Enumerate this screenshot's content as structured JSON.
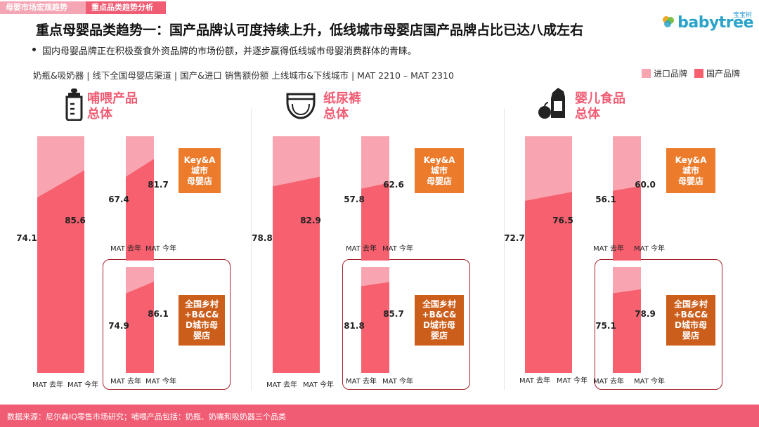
{
  "tabs": [
    "母婴市场宏观趋势",
    "重点品类趋势分析"
  ],
  "logo": {
    "small": "宝宝树",
    "main": "babytree"
  },
  "title": "重点母婴品类趋势一：国产品牌认可度持续上升，低线城市母婴店国产品牌占比已达八成左右",
  "bullet": "国内母婴品牌正在积极蚕食外资品牌的市场份额，并逐步赢得低线城市母婴消费群体的青睐。",
  "subtitle": "奶瓶&吸奶器 | 线下全国母婴店渠道 | 国产&进口 销售额份额 上线城市&下线城市 | MAT 2210 – MAT 2310",
  "legend": {
    "import": "进口品牌",
    "domestic": "国产品牌"
  },
  "colors": {
    "import": "#f8a5b1",
    "domestic": "#f6606f",
    "orange": "#ec7b2c",
    "frame": "#a4222c"
  },
  "categories": [
    {
      "name": "哺喂产品",
      "sub": "总体",
      "icon": "baby-bottle-icon"
    },
    {
      "name": "纸尿裤",
      "sub": "总体",
      "icon": "diaper-icon"
    },
    {
      "name": "婴儿食品",
      "sub": "总体",
      "icon": "baby-food-icon"
    }
  ],
  "segments": {
    "upper": "Key&A\n城市\n母婴店",
    "lower": "全国乡村\n+B&C&\nD城市母\n婴店"
  },
  "periods": [
    "MAT 去年",
    "MAT 今年"
  ],
  "chart_data": [
    {
      "type": "area",
      "category": "哺喂产品",
      "segment": "总体",
      "series": [
        {
          "name": "国产品牌",
          "values": [
            74.1,
            85.6
          ]
        }
      ],
      "categories": [
        "MAT 去年",
        "MAT 今年"
      ],
      "ylim": [
        0,
        100
      ]
    },
    {
      "type": "area",
      "category": "哺喂产品",
      "segment": "Key&A城市母婴店",
      "series": [
        {
          "name": "国产品牌",
          "values": [
            67.4,
            81.7
          ]
        }
      ],
      "categories": [
        "MAT 去年",
        "MAT 今年"
      ],
      "ylim": [
        0,
        100
      ]
    },
    {
      "type": "area",
      "category": "哺喂产品",
      "segment": "全国乡村+B&C&D城市母婴店",
      "series": [
        {
          "name": "国产品牌",
          "values": [
            74.9,
            86.1
          ]
        }
      ],
      "categories": [
        "MAT 去年",
        "MAT 今年"
      ],
      "ylim": [
        0,
        100
      ]
    },
    {
      "type": "area",
      "category": "纸尿裤",
      "segment": "总体",
      "series": [
        {
          "name": "国产品牌",
          "values": [
            78.8,
            82.9
          ]
        }
      ],
      "categories": [
        "MAT 去年",
        "MAT 今年"
      ],
      "ylim": [
        0,
        100
      ]
    },
    {
      "type": "area",
      "category": "纸尿裤",
      "segment": "Key&A城市母婴店",
      "series": [
        {
          "name": "国产品牌",
          "values": [
            57.8,
            62.6
          ]
        }
      ],
      "categories": [
        "MAT 去年",
        "MAT 今年"
      ],
      "ylim": [
        0,
        100
      ]
    },
    {
      "type": "area",
      "category": "纸尿裤",
      "segment": "全国乡村+B&C&D城市母婴店",
      "series": [
        {
          "name": "国产品牌",
          "values": [
            81.8,
            85.7
          ]
        }
      ],
      "categories": [
        "MAT 去年",
        "MAT 今年"
      ],
      "ylim": [
        0,
        100
      ]
    },
    {
      "type": "area",
      "category": "婴儿食品",
      "segment": "总体",
      "series": [
        {
          "name": "国产品牌",
          "values": [
            72.7,
            76.5
          ]
        }
      ],
      "categories": [
        "MAT 去年",
        "MAT 今年"
      ],
      "ylim": [
        0,
        100
      ]
    },
    {
      "type": "area",
      "category": "婴儿食品",
      "segment": "Key&A城市母婴店",
      "series": [
        {
          "name": "国产品牌",
          "values": [
            56.1,
            60.0
          ]
        }
      ],
      "categories": [
        "MAT 去年",
        "MAT 今年"
      ],
      "ylim": [
        0,
        100
      ]
    },
    {
      "type": "area",
      "category": "婴儿食品",
      "segment": "全国乡村+B&C&D城市母婴店",
      "series": [
        {
          "name": "国产品牌",
          "values": [
            75.1,
            78.9
          ]
        }
      ],
      "categories": [
        "MAT 去年",
        "MAT 今年"
      ],
      "ylim": [
        0,
        100
      ]
    }
  ],
  "footer": "数据来源：尼尔森IQ零售市场研究；哺喂产品包括：奶瓶、奶嘴和吸奶器三个品类"
}
